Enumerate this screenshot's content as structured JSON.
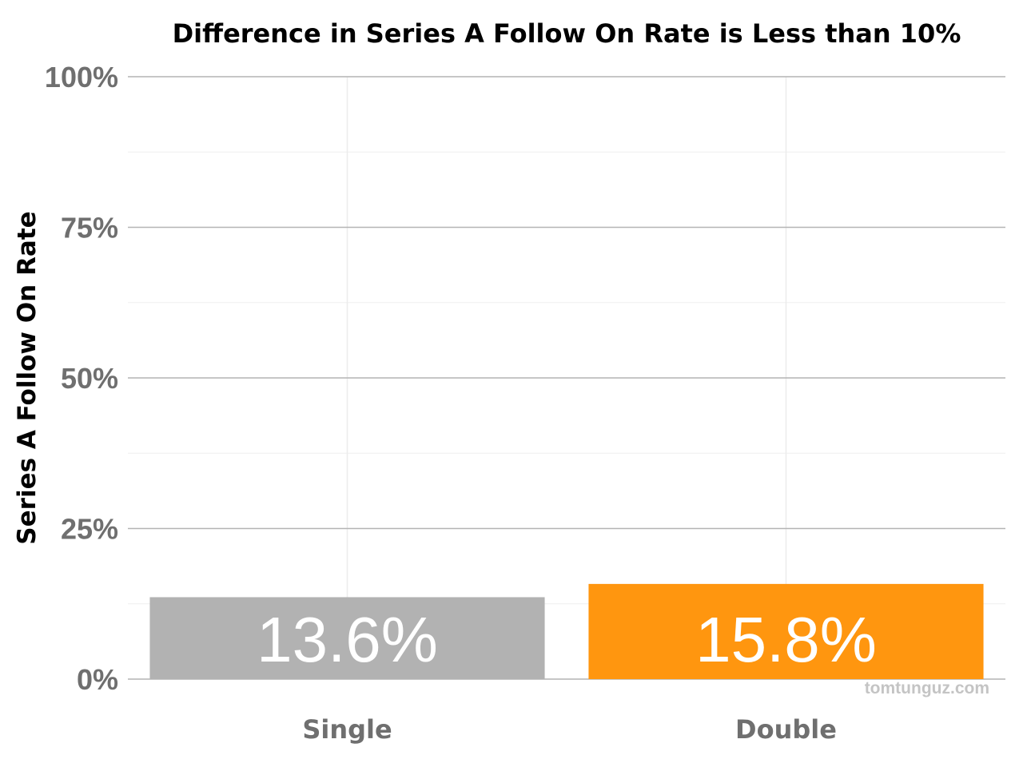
{
  "chart_data": {
    "type": "bar",
    "title": "Difference in Series A Follow On Rate is Less than 10%",
    "xlabel": "",
    "ylabel": "Series A Follow On Rate",
    "categories": [
      "Single",
      "Double"
    ],
    "values": [
      13.6,
      15.8
    ],
    "data_labels": [
      "13.6%",
      "15.8%"
    ],
    "colors": [
      "#b2b2b2",
      "#ff960f"
    ],
    "ylim": [
      0,
      100
    ],
    "yticks": [
      0,
      25,
      50,
      75,
      100
    ],
    "ytick_labels": [
      "0%",
      "25%",
      "50%",
      "75%",
      "100%"
    ],
    "grid": true,
    "legend": "none"
  },
  "watermark": "tomtunguz.com"
}
